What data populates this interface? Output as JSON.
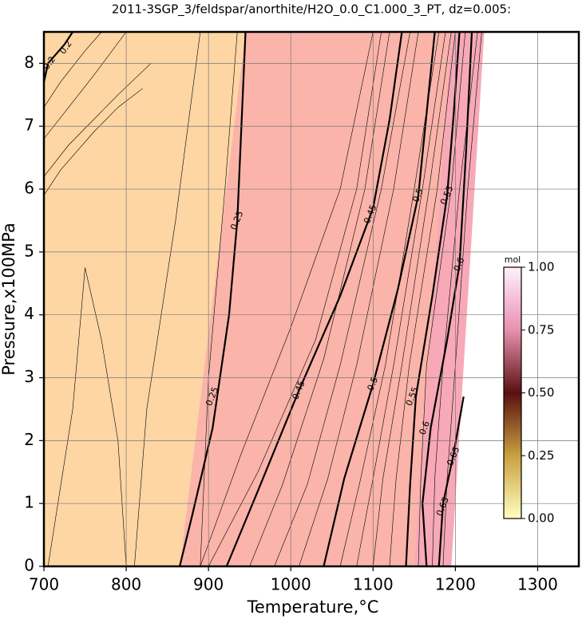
{
  "chart_data": {
    "type": "contour",
    "title": "2011-3SGP_3/feldspar/anorthite/H2O_0.0_C1.000_3_PT, dz=0.005:",
    "x_label": "Temperature,°C",
    "y_label": "Pressure,x100MPa",
    "xlim": [
      700,
      1350
    ],
    "ylim": [
      0,
      8.5
    ],
    "xticks": [
      700,
      800,
      900,
      1000,
      1100,
      1200,
      1300
    ],
    "yticks": [
      0,
      1,
      2,
      3,
      4,
      5,
      6,
      7,
      8
    ],
    "grid": true,
    "regions": [
      {
        "color": "#fdd6a4",
        "x": [
          700,
          865,
          945,
          700
        ],
        "y": [
          0,
          0,
          8.5,
          8.5
        ]
      },
      {
        "color": "#fbb4aa",
        "x": [
          865,
          1195,
          1235,
          945
        ],
        "y": [
          0,
          0,
          8.5,
          8.5
        ]
      },
      {
        "color": "#f7a9b7",
        "x": [
          1150,
          1195,
          1235,
          1195
        ],
        "y": [
          0,
          0,
          8.5,
          8.5
        ]
      }
    ],
    "contours": [
      {
        "level": 0.25,
        "x": [
          865,
          880,
          905,
          925,
          935,
          940,
          945
        ],
        "y": [
          0,
          0.8,
          2.2,
          4.0,
          5.5,
          7.0,
          8.5
        ]
      },
      {
        "level": 0.45,
        "x": [
          922,
          960,
          1010,
          1060,
          1100,
          1120,
          1135
        ],
        "y": [
          0,
          1.2,
          2.8,
          4.3,
          5.7,
          7.1,
          8.5
        ]
      },
      {
        "level": 0.5,
        "x": [
          1040,
          1065,
          1100,
          1130,
          1155,
          1165,
          1175
        ],
        "y": [
          0,
          1.4,
          2.9,
          4.4,
          5.9,
          7.2,
          8.5
        ]
      },
      {
        "level": 0.55,
        "x": [
          1140,
          1145,
          1152,
          1172,
          1190,
          1198,
          1205
        ],
        "y": [
          0,
          1.3,
          2.7,
          4.3,
          5.9,
          7.2,
          8.5
        ]
      },
      {
        "level": 0.6,
        "x": [
          1165,
          1160,
          1170,
          1190,
          1205,
          1213,
          1220
        ],
        "y": [
          0,
          1.0,
          2.2,
          3.6,
          4.8,
          6.6,
          8.5
        ]
      },
      {
        "level": 0.65,
        "x": [
          1180,
          1185,
          1198,
          1210
        ],
        "y": [
          0,
          1.0,
          1.8,
          2.7
        ]
      },
      {
        "level": 0.2,
        "x": [
          700,
          705,
          715,
          725,
          735
        ],
        "y": [
          7.7,
          8.0,
          8.15,
          8.3,
          8.5
        ]
      }
    ],
    "thin_contours": [
      {
        "x": [
          700,
          720,
          740,
          760,
          790,
          820
        ],
        "y": [
          5.9,
          6.3,
          6.6,
          6.9,
          7.3,
          7.6
        ]
      },
      {
        "x": [
          700,
          730,
          760,
          790,
          830
        ],
        "y": [
          6.2,
          6.7,
          7.1,
          7.5,
          8.0
        ]
      },
      {
        "x": [
          700,
          730,
          760,
          800
        ],
        "y": [
          6.8,
          7.3,
          7.8,
          8.5
        ]
      },
      {
        "x": [
          700,
          720,
          750,
          770
        ],
        "y": [
          7.3,
          7.7,
          8.2,
          8.5
        ]
      },
      {
        "x": [
          705,
          735,
          750,
          770,
          790,
          800
        ],
        "y": [
          0,
          2.5,
          4.75,
          3.6,
          2.0,
          0
        ]
      },
      {
        "x": [
          810,
          825,
          860,
          880,
          890
        ],
        "y": [
          0,
          2.5,
          5.5,
          7.5,
          8.5
        ]
      },
      {
        "x": [
          890,
          900,
          920,
          935
        ],
        "y": [
          0,
          3.0,
          6.0,
          8.5
        ]
      },
      {
        "x": [
          890,
          940,
          1000,
          1060,
          1100
        ],
        "y": [
          0,
          1.8,
          3.8,
          6.0,
          8.5
        ]
      },
      {
        "x": [
          900,
          960,
          1030,
          1080,
          1110
        ],
        "y": [
          0,
          1.5,
          3.6,
          6.0,
          8.5
        ]
      },
      {
        "x": [
          950,
          990,
          1040,
          1090,
          1120
        ],
        "y": [
          0,
          1.3,
          3.3,
          6.0,
          8.5
        ]
      },
      {
        "x": [
          980,
          1020,
          1060,
          1110,
          1145
        ],
        "y": [
          0,
          1.3,
          3.2,
          6.0,
          8.5
        ]
      },
      {
        "x": [
          1010,
          1045,
          1080,
          1125,
          1155
        ],
        "y": [
          0,
          1.4,
          3.2,
          6.0,
          8.5
        ]
      },
      {
        "x": [
          1060,
          1085,
          1115,
          1150,
          1180
        ],
        "y": [
          0,
          1.4,
          3.2,
          6.0,
          8.5
        ]
      },
      {
        "x": [
          1080,
          1100,
          1125,
          1160,
          1188
        ],
        "y": [
          0,
          1.4,
          3.2,
          6.0,
          8.5
        ]
      },
      {
        "x": [
          1100,
          1112,
          1135,
          1168,
          1195
        ],
        "y": [
          0,
          1.4,
          3.2,
          6.0,
          8.5
        ]
      },
      {
        "x": [
          1120,
          1128,
          1144,
          1178,
          1200
        ],
        "y": [
          0,
          1.4,
          3.2,
          6.0,
          8.5
        ]
      },
      {
        "x": [
          1155,
          1158,
          1165,
          1195,
          1212
        ],
        "y": [
          0,
          1.4,
          3.2,
          6.0,
          8.5
        ]
      },
      {
        "x": [
          1172,
          1175,
          1185,
          1205,
          1227
        ],
        "y": [
          0,
          1.4,
          3.2,
          6.0,
          8.5
        ]
      },
      {
        "x": [
          1185,
          1190,
          1200,
          1215,
          1232
        ],
        "y": [
          0,
          1.4,
          3.2,
          6.0,
          8.5
        ]
      }
    ],
    "contour_labels": [
      {
        "text": "0.2",
        "x": 707,
        "y": 8.0
      },
      {
        "text": "0.2",
        "x": 727,
        "y": 8.25
      },
      {
        "text": "0.25",
        "x": 935,
        "y": 5.5
      },
      {
        "text": "0.25",
        "x": 905,
        "y": 2.7
      },
      {
        "text": "0.45",
        "x": 1010,
        "y": 2.8
      },
      {
        "text": "0.45",
        "x": 1097,
        "y": 5.6
      },
      {
        "text": "0.5",
        "x": 1100,
        "y": 2.9
      },
      {
        "text": "0.5",
        "x": 1155,
        "y": 5.9
      },
      {
        "text": "0.55",
        "x": 1148,
        "y": 2.7
      },
      {
        "text": "0.55",
        "x": 1190,
        "y": 5.9
      },
      {
        "text": "0.6",
        "x": 1163,
        "y": 2.2
      },
      {
        "text": "0.6",
        "x": 1205,
        "y": 4.8
      },
      {
        "text": "0.65",
        "x": 1185,
        "y": 0.95
      },
      {
        "text": "0.65",
        "x": 1198,
        "y": 1.75
      }
    ],
    "colorbar": {
      "unit": "mol",
      "lim": [
        0,
        1
      ],
      "ticks": [
        {
          "value": 0,
          "label": "0.00"
        },
        {
          "value": 0.25,
          "label": "0.25"
        },
        {
          "value": 0.5,
          "label": "0.50"
        },
        {
          "value": 0.75,
          "label": "0.75"
        },
        {
          "value": 1,
          "label": "1.00"
        }
      ],
      "colors": [
        "#ffffc0",
        "#c8a040",
        "#5a1010",
        "#e890b0",
        "#fff0ff"
      ]
    }
  }
}
